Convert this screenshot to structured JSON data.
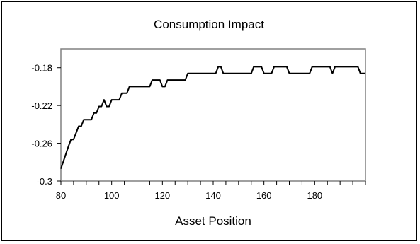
{
  "chart_data": {
    "type": "line",
    "title": "Consumption Impact",
    "xlabel": "Asset Position",
    "ylabel": "",
    "xlim": [
      80,
      200
    ],
    "ylim": [
      -0.3,
      -0.16
    ],
    "x_ticks": [
      80,
      100,
      120,
      140,
      160,
      180
    ],
    "y_ticks": [
      -0.3,
      -0.26,
      -0.22,
      -0.18
    ],
    "x_tick_labels": [
      "80",
      "100",
      "120",
      "140",
      "160",
      "180"
    ],
    "y_tick_labels": [
      "-0.3",
      "-0.26",
      "-0.22",
      "-0.18"
    ],
    "grid": false,
    "legend": "none",
    "line_color": "#000000",
    "series": [
      {
        "x": [
          80,
          81,
          82,
          83,
          84,
          85,
          86,
          87,
          88,
          89,
          90,
          91,
          92,
          93,
          94,
          95,
          96,
          97,
          98,
          99,
          100,
          101,
          102,
          103,
          104,
          105,
          106,
          107,
          108,
          109,
          110,
          111,
          112,
          113,
          114,
          115,
          116,
          117,
          118,
          119,
          120,
          121,
          122,
          123,
          124,
          125,
          126,
          127,
          128,
          129,
          130,
          131,
          132,
          133,
          134,
          135,
          136,
          137,
          138,
          139,
          140,
          141,
          142,
          143,
          144,
          145,
          146,
          147,
          148,
          149,
          150,
          151,
          152,
          153,
          154,
          155,
          156,
          157,
          158,
          159,
          160,
          161,
          162,
          163,
          164,
          165,
          166,
          167,
          168,
          169,
          170,
          171,
          172,
          173,
          174,
          175,
          176,
          177,
          178,
          179,
          180,
          181,
          182,
          183,
          184,
          185,
          186,
          187,
          188,
          189,
          190,
          191,
          192,
          193,
          194,
          195,
          196,
          197,
          198,
          199,
          200
        ],
        "y": [
          -0.287,
          -0.279,
          -0.271,
          -0.263,
          -0.256,
          -0.256,
          -0.249,
          -0.242,
          -0.242,
          -0.235,
          -0.235,
          -0.235,
          -0.235,
          -0.228,
          -0.228,
          -0.221,
          -0.221,
          -0.214,
          -0.221,
          -0.221,
          -0.214,
          -0.214,
          -0.214,
          -0.214,
          -0.207,
          -0.207,
          -0.207,
          -0.2,
          -0.2,
          -0.2,
          -0.2,
          -0.2,
          -0.2,
          -0.2,
          -0.2,
          -0.2,
          -0.193,
          -0.193,
          -0.193,
          -0.193,
          -0.2,
          -0.2,
          -0.193,
          -0.193,
          -0.193,
          -0.193,
          -0.193,
          -0.193,
          -0.193,
          -0.193,
          -0.186,
          -0.186,
          -0.186,
          -0.186,
          -0.186,
          -0.186,
          -0.186,
          -0.186,
          -0.186,
          -0.186,
          -0.186,
          -0.186,
          -0.179,
          -0.179,
          -0.186,
          -0.186,
          -0.186,
          -0.186,
          -0.186,
          -0.186,
          -0.186,
          -0.186,
          -0.186,
          -0.186,
          -0.186,
          -0.186,
          -0.179,
          -0.179,
          -0.179,
          -0.179,
          -0.186,
          -0.186,
          -0.186,
          -0.186,
          -0.179,
          -0.179,
          -0.179,
          -0.179,
          -0.179,
          -0.179,
          -0.186,
          -0.186,
          -0.186,
          -0.186,
          -0.186,
          -0.186,
          -0.186,
          -0.186,
          -0.186,
          -0.179,
          -0.179,
          -0.179,
          -0.179,
          -0.179,
          -0.179,
          -0.179,
          -0.179,
          -0.186,
          -0.179,
          -0.179,
          -0.179,
          -0.179,
          -0.179,
          -0.179,
          -0.179,
          -0.179,
          -0.179,
          -0.179,
          -0.186,
          -0.186,
          -0.186
        ]
      }
    ]
  }
}
